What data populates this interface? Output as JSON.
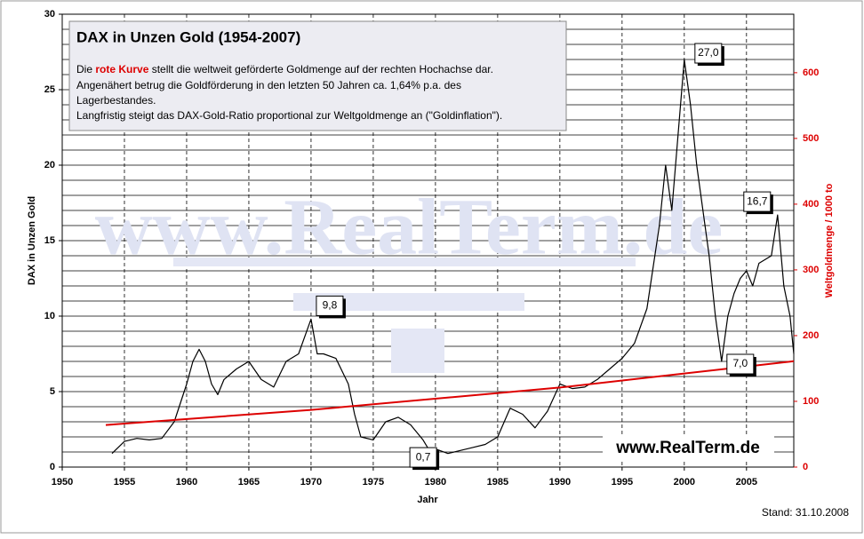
{
  "chart_data": {
    "type": "line",
    "title": "DAX in Unzen Gold   (1954-2007)",
    "description": [
      [
        "Die ",
        "rote Kurve",
        " stellt die weltweit geförderte Goldmenge auf der rechten Hochachse dar."
      ],
      [
        "Angenähert betrug die Goldförderung in den letzten 50 Jahren ca. 1,64% p.a. des"
      ],
      [
        "Lagerbestandes."
      ],
      [
        "Langfristig steigt das DAX-Gold-Ratio proportional zur Weltgoldmenge an (\"Goldinflation\")."
      ]
    ],
    "x_label": "Jahr",
    "y_label": "DAX in Unzen Gold",
    "y2_label": "Weltgoldmenge / 1000 to",
    "watermark": "www.RealTerm.de",
    "source": "www.RealTerm.de",
    "footnote": "Stand: 31.10.2008",
    "xlim": [
      1950,
      2008.8
    ],
    "xticks": [
      1950,
      1955,
      1960,
      1965,
      1970,
      1975,
      1980,
      1985,
      1990,
      1995,
      2000,
      2005
    ],
    "ylim": [
      0,
      30
    ],
    "yticks": [
      0,
      5,
      10,
      15,
      20,
      25,
      30
    ],
    "y_gridlines": [
      1,
      2,
      3,
      4,
      6,
      7,
      8,
      9,
      11,
      12,
      13,
      14,
      16,
      17,
      18,
      19,
      21,
      22,
      23,
      24,
      26,
      27,
      28,
      29
    ],
    "y2lim": [
      0,
      689
    ],
    "y2ticks": [
      0,
      100,
      200,
      300,
      400,
      500,
      600
    ],
    "series": [
      {
        "color": "#000000",
        "x": [
          1954,
          1955,
          1956,
          1957,
          1958,
          1959,
          1960,
          1960.5,
          1961,
          1961.5,
          1962,
          1962.5,
          1963,
          1964,
          1965,
          1966,
          1967,
          1968,
          1969,
          1970,
          1970.5,
          1971,
          1972,
          1973,
          1973.5,
          1974,
          1975,
          1976,
          1977,
          1978,
          1979,
          1979.8,
          1980,
          1981,
          1982,
          1983,
          1984,
          1985,
          1986,
          1987,
          1988,
          1989,
          1990,
          1991,
          1992,
          1993,
          1994,
          1995,
          1996,
          1997,
          1998,
          1998.5,
          1999,
          1999.5,
          2000,
          2000.5,
          2001,
          2001.5,
          2002,
          2002.5,
          2003,
          2003.5,
          2004,
          2004.5,
          2005,
          2005.5,
          2006,
          2007,
          2007.5,
          2008,
          2008.5,
          2008.8
        ],
        "values": [
          0.9,
          1.7,
          1.9,
          1.8,
          1.9,
          3.0,
          5.5,
          7.0,
          7.8,
          7.0,
          5.5,
          4.8,
          5.8,
          6.5,
          7.0,
          5.8,
          5.3,
          7.0,
          7.5,
          9.8,
          7.5,
          7.5,
          7.2,
          5.5,
          3.5,
          2.0,
          1.8,
          3.0,
          3.3,
          2.8,
          1.8,
          0.7,
          1.2,
          0.9,
          1.1,
          1.3,
          1.5,
          2.0,
          3.9,
          3.5,
          2.6,
          3.7,
          5.5,
          5.2,
          5.3,
          5.8,
          6.5,
          7.2,
          8.2,
          10.5,
          16,
          20,
          17,
          22,
          27.0,
          24,
          20,
          17,
          14,
          10,
          7.0,
          10,
          11.5,
          12.5,
          13,
          12,
          13.5,
          14,
          16.7,
          12,
          10,
          7.5
        ]
      },
      {
        "color": "#dd0000",
        "axis": "y2",
        "x": [
          1953.5,
          1970,
          1990,
          2008.8
        ],
        "values": [
          64,
          87,
          121,
          161
        ]
      }
    ],
    "annotations": [
      {
        "x": 2000,
        "y": 27.0,
        "label": "27,0"
      },
      {
        "x": 2007.5,
        "y": 16.7,
        "label": "16,7"
      },
      {
        "x": 1970,
        "y": 9.8,
        "label": "9,8"
      },
      {
        "x": 1979.8,
        "y": 0.7,
        "label": "0,7"
      },
      {
        "x": 2003,
        "y": 7.0,
        "label": "7,0"
      }
    ]
  }
}
